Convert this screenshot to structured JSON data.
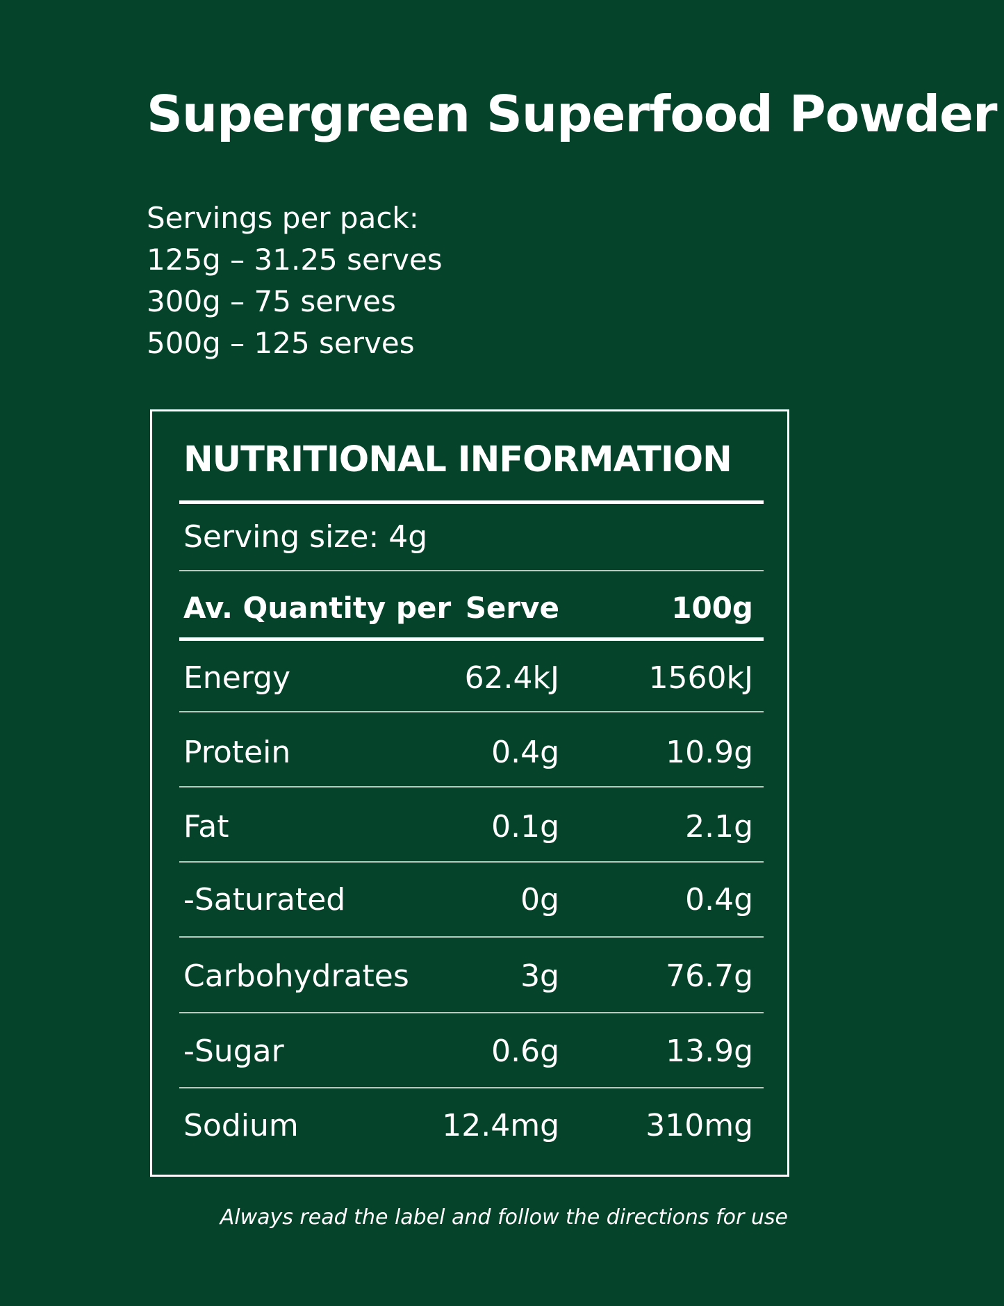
{
  "title": "Supergreen Superfood Powder",
  "servings": {
    "heading": "Servings per pack:",
    "lines": [
      "125g – 31.25 serves",
      "300g – 75 serves",
      "500g – 125 serves"
    ]
  },
  "panel": {
    "heading": "NUTRITIONAL INFORMATION",
    "serving_size": "Serving size: 4g",
    "columns": {
      "label": "Av. Quantity per",
      "serve": "Serve",
      "per100": "100g"
    },
    "rows": [
      {
        "label": "Energy",
        "serve": "62.4kJ",
        "per100": "1560kJ"
      },
      {
        "label": "Protein",
        "serve": "0.4g",
        "per100": "10.9g"
      },
      {
        "label": "Fat",
        "serve": "0.1g",
        "per100": "2.1g"
      },
      {
        "label": "-Saturated",
        "serve": "0g",
        "per100": "0.4g"
      },
      {
        "label": "Carbohydrates",
        "serve": "3g",
        "per100": "76.7g"
      },
      {
        "label": "-Sugar",
        "serve": "0.6g",
        "per100": "13.9g"
      },
      {
        "label": "Sodium",
        "serve": "12.4mg",
        "per100": "310mg"
      }
    ]
  },
  "footer": "Always read the label and follow the directions for use",
  "colors": {
    "background": "#05432b",
    "text": "#ffffff"
  }
}
